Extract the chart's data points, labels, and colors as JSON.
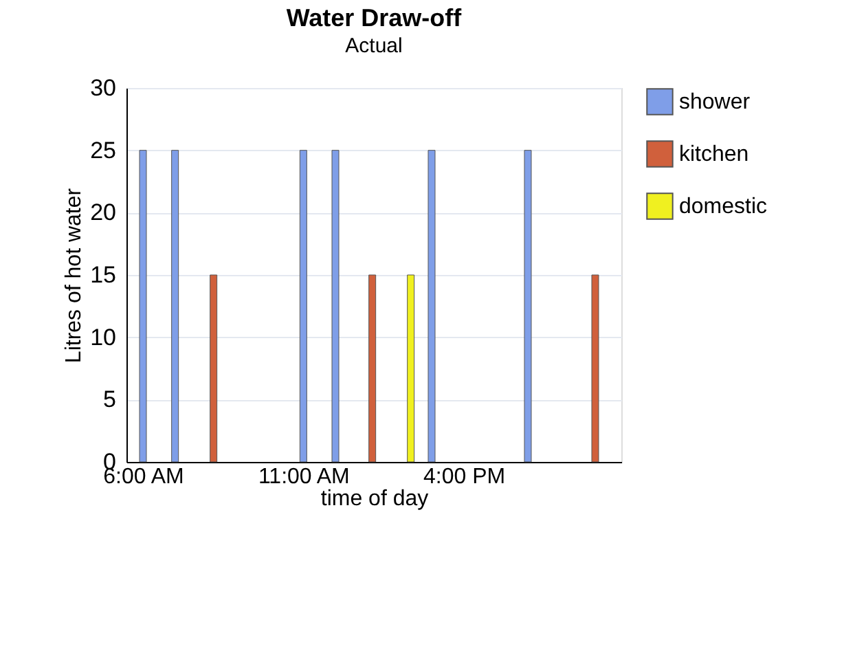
{
  "chart_data": {
    "type": "bar",
    "title": "Water Draw-off",
    "subtitle": "Actual",
    "xlabel": "time of day",
    "ylabel": "Litres of hot water",
    "series": [
      {
        "name": "shower",
        "color": "#7f9ee8",
        "x": [
          6.0,
          7.0,
          11.0,
          12.0,
          15.0,
          18.0
        ],
        "values": [
          25,
          25,
          25,
          25,
          25,
          25
        ]
      },
      {
        "name": "kitchen",
        "color": "#d0603c",
        "x": [
          8.2,
          13.15,
          20.1
        ],
        "values": [
          15,
          15,
          15
        ]
      },
      {
        "name": "domestic",
        "color": "#f0f020",
        "x": [
          14.35
        ],
        "values": [
          15
        ]
      }
    ],
    "xlim": [
      5.7,
      20.7
    ],
    "xticks": [
      {
        "value": 6,
        "label": "6:00 AM"
      },
      {
        "value": 11,
        "label": "11:00 AM"
      },
      {
        "value": 16,
        "label": "4:00 PM"
      }
    ],
    "ylim": [
      0,
      30
    ],
    "yticks": [
      0,
      5,
      10,
      15,
      20,
      25,
      30
    ],
    "grid": "y",
    "legend": "right"
  }
}
